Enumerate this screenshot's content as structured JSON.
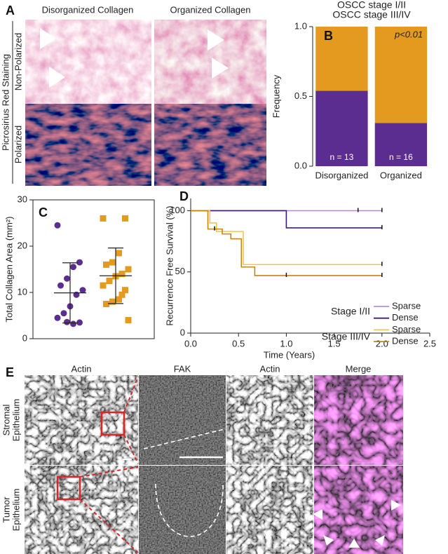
{
  "panel_a": {
    "label": "A",
    "column_titles": [
      "Disorganized Collagen",
      "Organized Collagen"
    ],
    "side_title": "Picrosirius Red Staining",
    "row_titles": [
      "Non-Polarized",
      "Polarized"
    ]
  },
  "panel_e": {
    "label": "E",
    "column_titles": [
      "Actin",
      "FAK",
      "Actin",
      "Merge"
    ],
    "row_titles": [
      [
        "Stromal",
        "Epithelium"
      ],
      [
        "Tumor",
        "Epithelium"
      ]
    ]
  },
  "chart_data": [
    {
      "type": "bar",
      "stacked": true,
      "panel_label": "B",
      "y_label": "Frequency",
      "categories": [
        "Disorganized",
        "Organized"
      ],
      "series": [
        {
          "name": "OSCC stage I/II",
          "color": "#5c2d91",
          "values": [
            0.54,
            0.31
          ]
        },
        {
          "name": "OSCC stage III/IV",
          "color": "#e39a1f",
          "values": [
            0.46,
            0.69
          ]
        }
      ],
      "annotations": [
        "n = 13",
        "n = 16"
      ],
      "p_label": "p<0.01",
      "ylim": [
        0,
        1
      ],
      "yticks": [
        {
          "value": 0,
          "label": "0.0"
        },
        0.5,
        {
          "value": 1,
          "label": "1.0"
        }
      ]
    },
    {
      "type": "scatter",
      "panel_label": "C",
      "y_label": "Total Collagen Area (mm²)",
      "series": [
        {
          "color": "#5c2d91",
          "marker": "circle",
          "mean": 9.9,
          "sd": 6.5,
          "values": [
            24.5,
            16.5,
            15.5,
            13,
            11.5,
            10.5,
            9.5,
            7,
            5.5,
            4.5,
            3.5,
            3.2,
            3.6
          ]
        },
        {
          "color": "#e39a1f",
          "marker": "square",
          "mean": 13.6,
          "sd": 6,
          "values": [
            26,
            26,
            18.5,
            16.5,
            16,
            15,
            14,
            13.5,
            12.5,
            11.5,
            10.5,
            8.5,
            8,
            7.5,
            4,
            9.5
          ]
        }
      ],
      "ylim": [
        0,
        30
      ],
      "yticks": [
        0,
        10,
        20,
        30
      ]
    },
    {
      "type": "line",
      "panel_label": "D",
      "x_label": "Time (Years)",
      "y_label": "Recurrence Free Survival (%)",
      "legend_groups": [
        {
          "label": "Stage I/II",
          "color": "#6a35a8"
        },
        {
          "label": "Stage III/IV",
          "color": "#e0a020"
        }
      ],
      "series": [
        {
          "name": "Sparse",
          "color": "#b98fd6",
          "x": [
            0,
            2.0
          ],
          "values": [
            100,
            100
          ],
          "censor_x": [
            1.75,
            2.0
          ],
          "censor_values": [
            100,
            100
          ]
        },
        {
          "name": "Dense",
          "color": "#3f1e72",
          "x": [
            0,
            1.0,
            1.0,
            2.0
          ],
          "values": [
            100,
            100,
            86,
            86
          ],
          "censor_x": [
            2.0
          ],
          "censor_values": [
            86
          ]
        },
        {
          "name": "Sparse",
          "color": "#f2c35c",
          "x": [
            0,
            0.2,
            0.2,
            0.27,
            0.27,
            0.55,
            0.55,
            2.0
          ],
          "values": [
            100,
            100,
            90,
            90,
            83,
            83,
            56,
            56
          ],
          "censor_x": [
            2.0
          ],
          "censor_values": [
            56
          ]
        },
        {
          "name": "Dense",
          "color": "#c88414",
          "x": [
            0,
            0.18,
            0.18,
            0.33,
            0.33,
            0.42,
            0.42,
            0.53,
            0.53,
            0.67,
            0.67,
            2.0
          ],
          "values": [
            100,
            100,
            85,
            85,
            81,
            81,
            77,
            77,
            54,
            54,
            47,
            47
          ],
          "censor_x": [
            0.25,
            1.0,
            2.0
          ],
          "censor_values": [
            85,
            47,
            47
          ]
        }
      ],
      "xlim": [
        0,
        2.5
      ],
      "xticks": [
        {
          "value": 0,
          "label": "0.0"
        },
        0.5,
        {
          "value": 1,
          "label": "1.0"
        },
        1.5,
        {
          "value": 2,
          "label": "2.0"
        },
        2.5
      ],
      "ylim": [
        0,
        110
      ],
      "yticks": [
        0,
        50,
        100
      ]
    }
  ]
}
